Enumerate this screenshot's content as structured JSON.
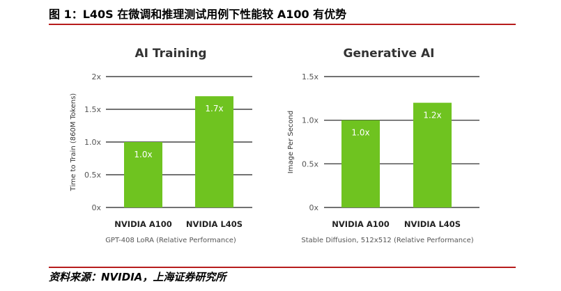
{
  "figure_title": "图 1：L40S 在微调和推理测试用例下性能较 A100 有优势",
  "source_text": "资料来源：NVIDIA，上海证券研究所",
  "colors": {
    "bar": "#6fc320",
    "rule": "#b71c1c"
  },
  "chart_data": [
    {
      "type": "bar",
      "title": "AI Training",
      "ylabel": "Time to Train (860M Tokens)",
      "xlabel": "GPT-408 LoRA (Relative Performance)",
      "categories": [
        "NVIDIA A100",
        "NVIDIA L40S"
      ],
      "values": [
        1.0,
        1.7
      ],
      "value_labels": [
        "1.0x",
        "1.7x"
      ],
      "yticks": [
        0,
        0.5,
        1.0,
        1.5,
        2
      ],
      "ytick_labels": [
        "0x",
        "0.5x",
        "1.0x",
        "1.5x",
        "2x"
      ],
      "ylim": [
        0,
        2
      ],
      "grid": true
    },
    {
      "type": "bar",
      "title": "Generative AI",
      "ylabel": "Image Per Second",
      "xlabel": "Stable Diffusion, 512x512 (Relative Performance)",
      "categories": [
        "NVIDIA A100",
        "NVIDIA L40S"
      ],
      "values": [
        1.0,
        1.2
      ],
      "value_labels": [
        "1.0x",
        "1.2x"
      ],
      "yticks": [
        0,
        0.5,
        1.0,
        1.5
      ],
      "ytick_labels": [
        "0x",
        "0.5x",
        "1.0x",
        "1.5x"
      ],
      "ylim": [
        0,
        1.5
      ],
      "grid": true
    }
  ]
}
